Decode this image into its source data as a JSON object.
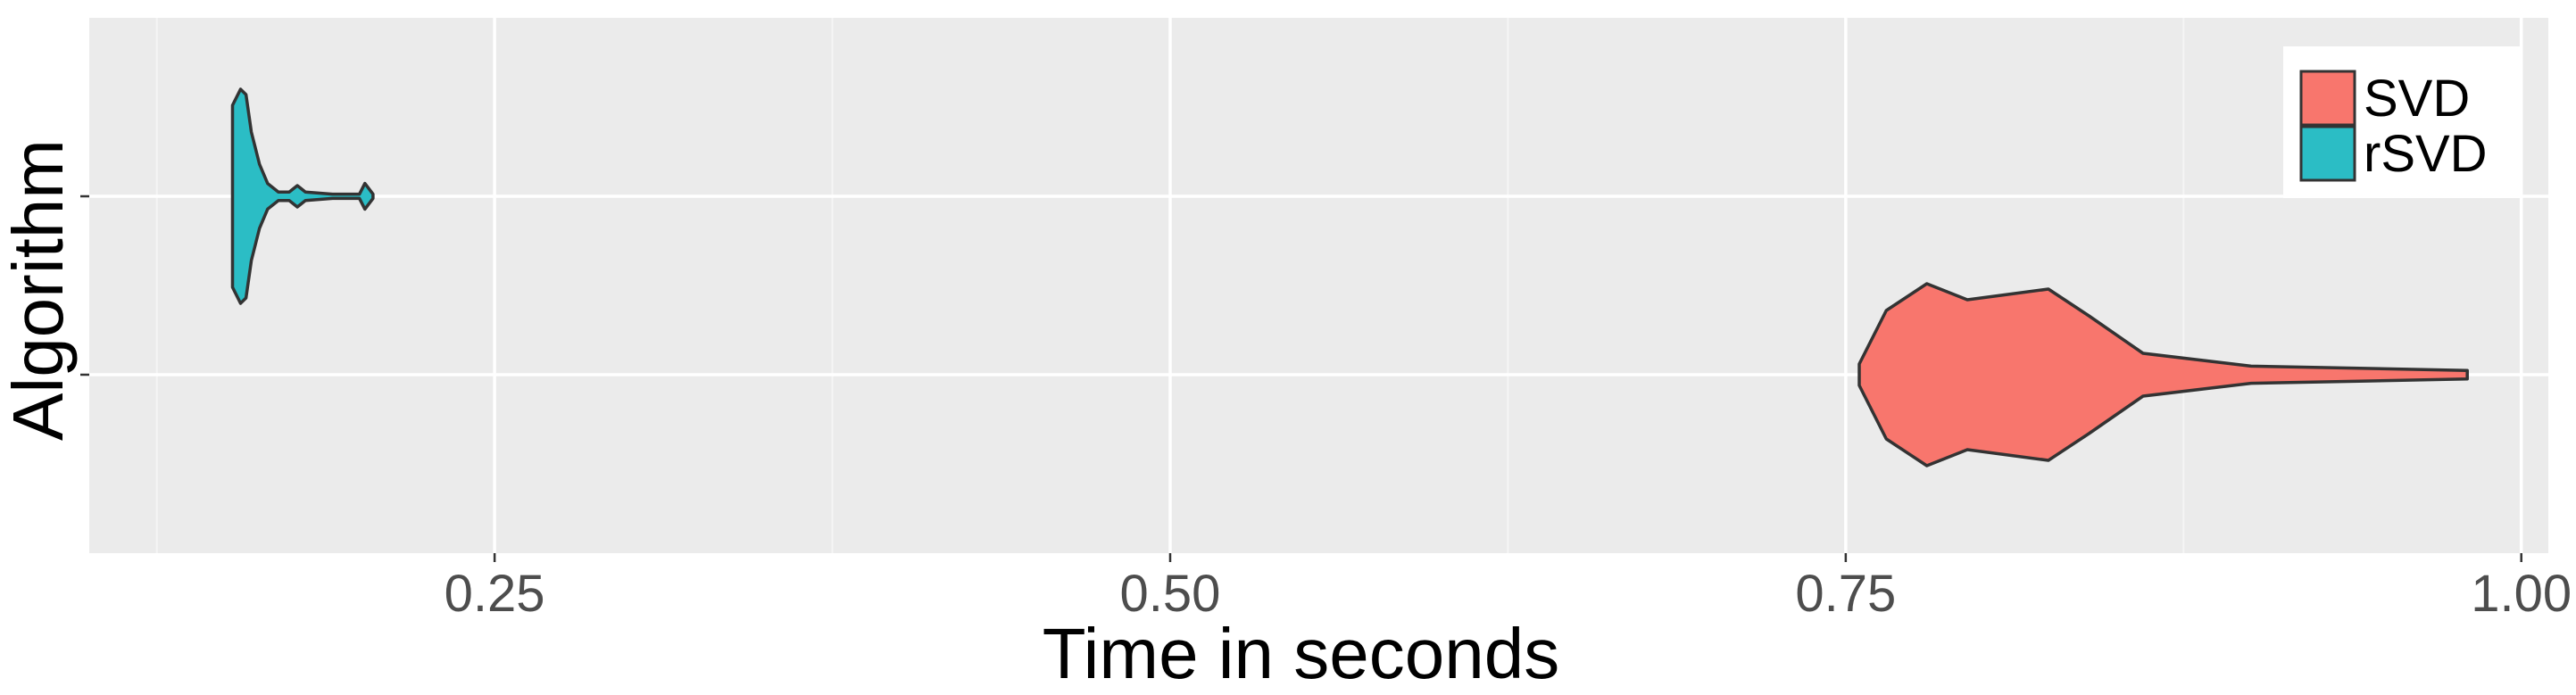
{
  "chart_data": {
    "type": "violin",
    "orientation": "horizontal",
    "xlabel": "Time in seconds",
    "ylabel": "Algorithm",
    "xlim": [
      0.1,
      1.01
    ],
    "x_ticks": [
      0.25,
      0.5,
      0.75,
      1.0
    ],
    "x_tick_labels": [
      "0.25",
      "0.50",
      "0.75",
      "1.00"
    ],
    "x_minor_ticks": [
      0.125,
      0.375,
      0.625,
      0.875
    ],
    "categories": [
      "SVD",
      "rSVD"
    ],
    "grid": true,
    "legend_position": "top-right",
    "legend": [
      {
        "label": "SVD",
        "color": "#F8766D"
      },
      {
        "label": "rSVD",
        "color": "#2BBDC5"
      }
    ],
    "series": [
      {
        "name": "SVD",
        "color": "#F8766D",
        "min": 0.755,
        "max": 0.98,
        "profile": [
          [
            0.755,
            0.1
          ],
          [
            0.765,
            0.6
          ],
          [
            0.78,
            0.85
          ],
          [
            0.795,
            0.7
          ],
          [
            0.81,
            0.75
          ],
          [
            0.825,
            0.8
          ],
          [
            0.84,
            0.55
          ],
          [
            0.86,
            0.2
          ],
          [
            0.9,
            0.08
          ],
          [
            0.94,
            0.06
          ],
          [
            0.98,
            0.04
          ]
        ]
      },
      {
        "name": "rSVD",
        "color": "#2BBDC5",
        "min": 0.153,
        "max": 0.205,
        "profile": [
          [
            0.153,
            0.85
          ],
          [
            0.156,
            1.0
          ],
          [
            0.158,
            0.95
          ],
          [
            0.16,
            0.6
          ],
          [
            0.163,
            0.3
          ],
          [
            0.166,
            0.12
          ],
          [
            0.17,
            0.04
          ],
          [
            0.174,
            0.04
          ],
          [
            0.177,
            0.1
          ],
          [
            0.18,
            0.04
          ],
          [
            0.19,
            0.02
          ],
          [
            0.2,
            0.02
          ],
          [
            0.202,
            0.12
          ],
          [
            0.205,
            0.02
          ]
        ]
      }
    ]
  }
}
